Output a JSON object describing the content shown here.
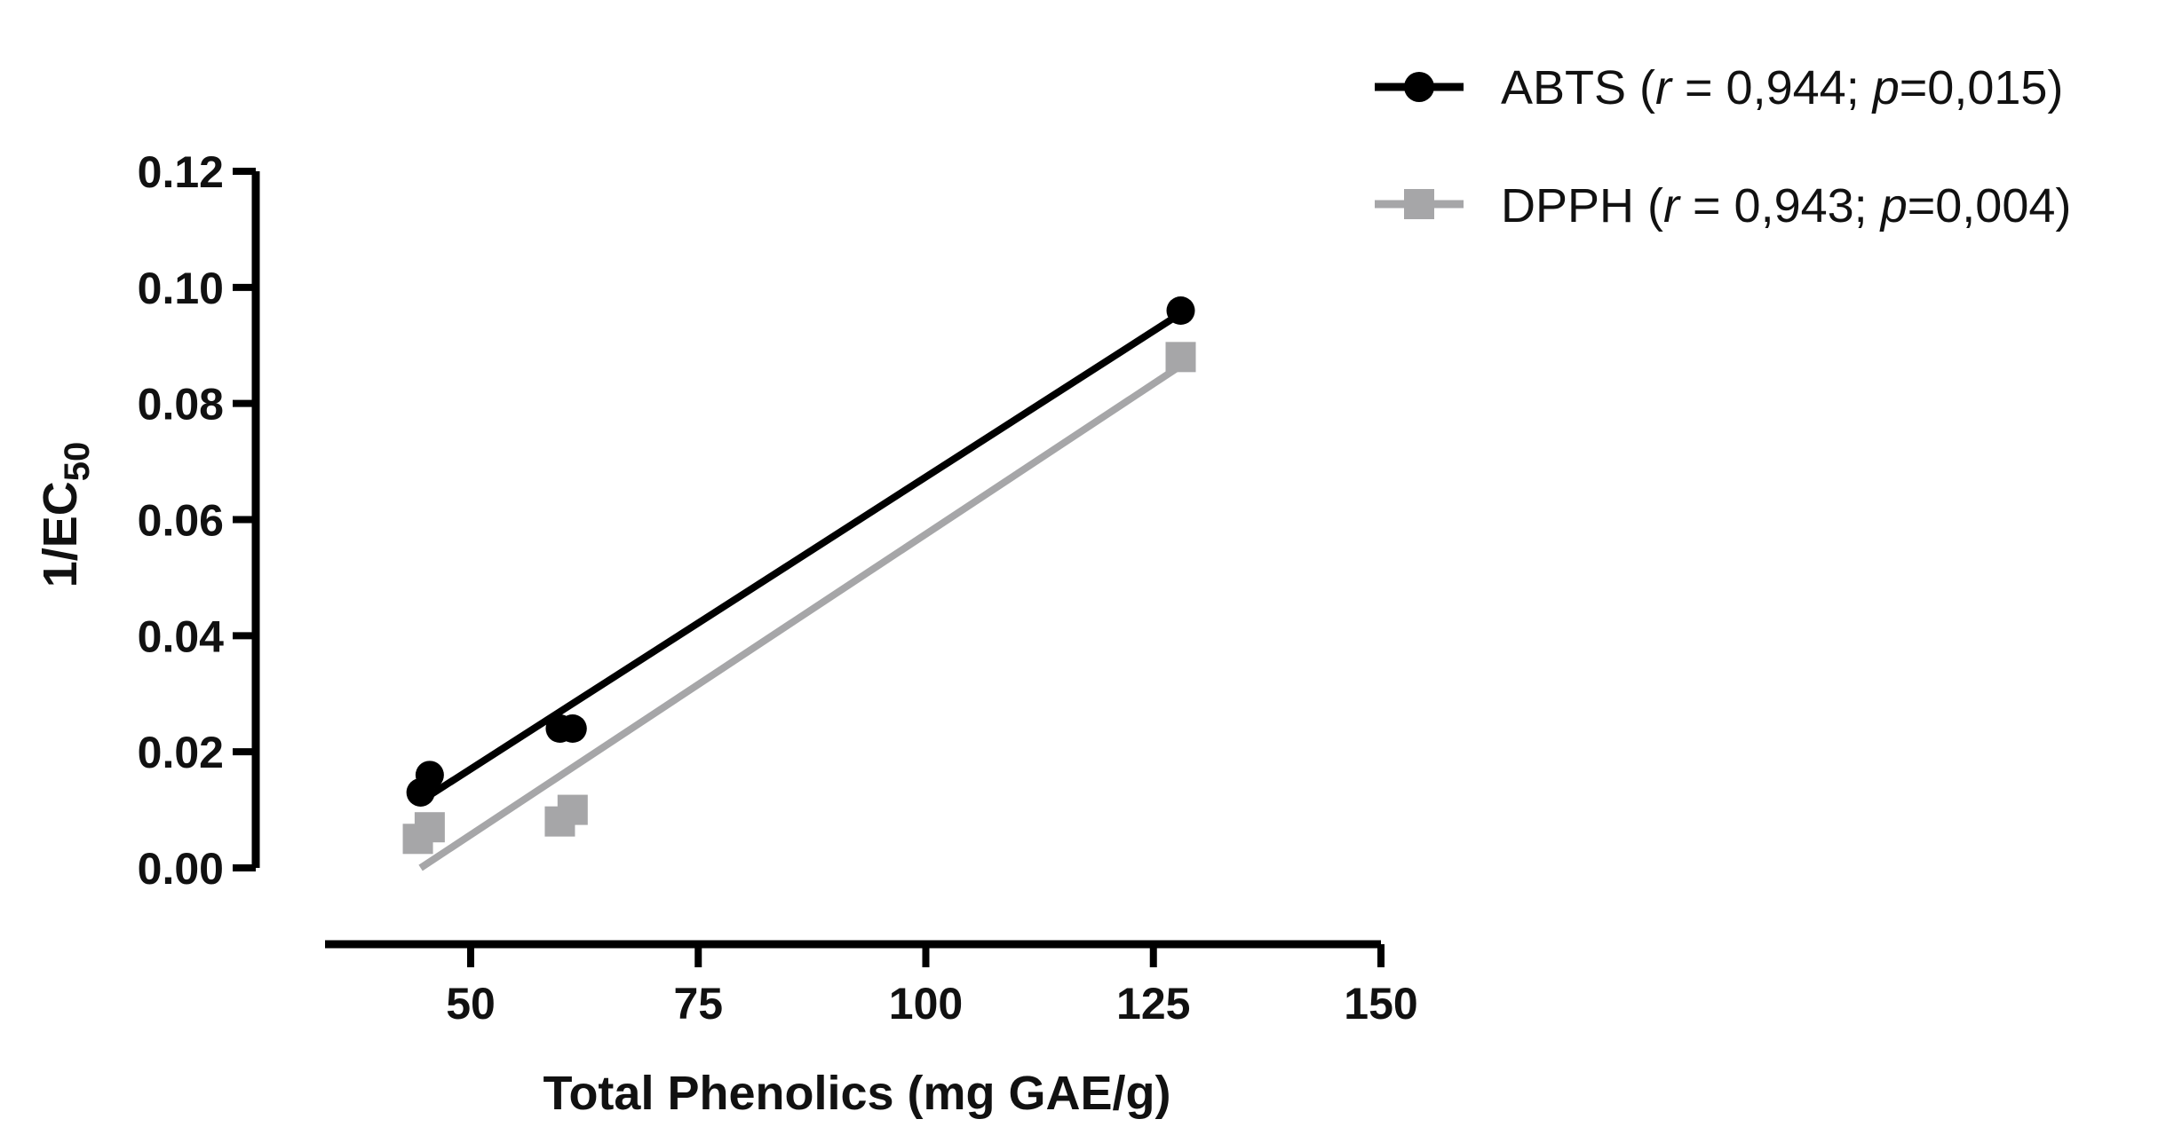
{
  "chart_data": {
    "type": "scatter",
    "title": "",
    "xlabel": "Total Phenolics (mg GAE/g)",
    "ylabel": {
      "main": "1/EC",
      "sub": "50"
    },
    "xlim": [
      34,
      150
    ],
    "ylim": [
      0,
      0.12
    ],
    "x_ticks": [
      50,
      75,
      100,
      125,
      150
    ],
    "x_tick_labels": [
      "50",
      "75",
      "100",
      "125",
      "150"
    ],
    "y_ticks": [
      0,
      0.02,
      0.04,
      0.06,
      0.08,
      0.1,
      0.12
    ],
    "y_tick_labels": [
      "0.00",
      "0.02",
      "0.04",
      "0.06",
      "0.08",
      "0.10",
      "0.12"
    ],
    "legend_position": "top-right",
    "series": [
      {
        "name": "ABTS",
        "legend": {
          "pre": "ABTS (",
          "r_sym": "r",
          "r_val": " = 0,944; ",
          "p_sym": "p",
          "p_val": "=0,015)"
        },
        "marker": "circle",
        "color": "#000000",
        "points": [
          {
            "x": 44.5,
            "y": 0.013
          },
          {
            "x": 45.5,
            "y": 0.016
          },
          {
            "x": 59.8,
            "y": 0.024
          },
          {
            "x": 61.2,
            "y": 0.024
          },
          {
            "x": 128,
            "y": 0.096
          }
        ],
        "fit": {
          "x0": 44.5,
          "y0": 0.0115,
          "x1": 128,
          "y1": 0.0955
        }
      },
      {
        "name": "DPPH",
        "legend": {
          "pre": "DPPH (",
          "r_sym": "r",
          "r_val": " = 0,943; ",
          "p_sym": "p",
          "p_val": "=0,004)"
        },
        "marker": "square",
        "color": "#a6a6a8",
        "points": [
          {
            "x": 44.2,
            "y": 0.005
          },
          {
            "x": 45.5,
            "y": 0.007
          },
          {
            "x": 59.8,
            "y": 0.008
          },
          {
            "x": 61.2,
            "y": 0.01
          },
          {
            "x": 128,
            "y": 0.088
          }
        ],
        "fit": {
          "x0": 44.5,
          "y0": 0.0,
          "x1": 128,
          "y1": 0.0865
        }
      }
    ]
  }
}
